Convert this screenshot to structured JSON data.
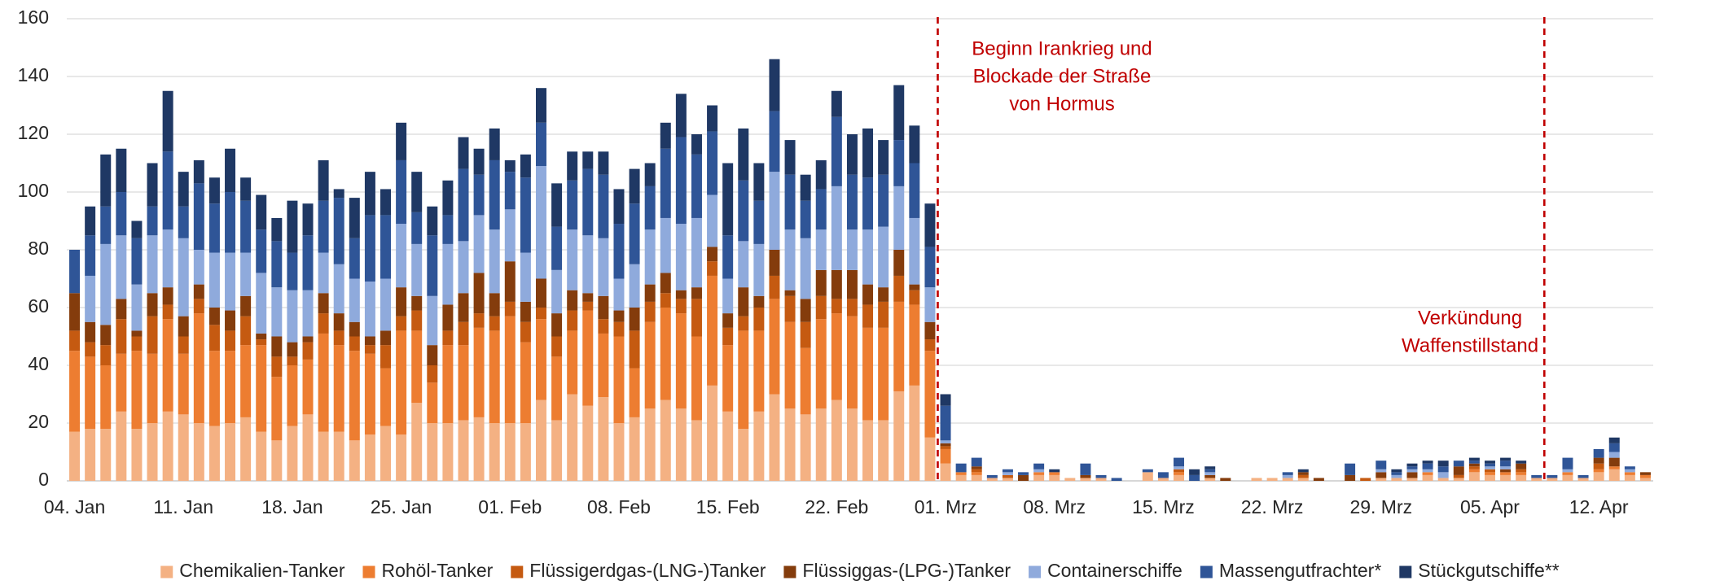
{
  "chart_data": {
    "type": "stacked_bar",
    "categories": [
      "04. Jan",
      null,
      null,
      null,
      null,
      null,
      null,
      "11. Jan",
      null,
      null,
      null,
      null,
      null,
      null,
      "18. Jan",
      null,
      null,
      null,
      null,
      null,
      null,
      "25. Jan",
      null,
      null,
      null,
      null,
      null,
      null,
      "01. Feb",
      null,
      null,
      null,
      null,
      null,
      null,
      "08. Feb",
      null,
      null,
      null,
      null,
      null,
      null,
      "15. Feb",
      null,
      null,
      null,
      null,
      null,
      null,
      "22. Feb",
      null,
      null,
      null,
      null,
      null,
      null,
      "01. Mrz",
      null,
      null,
      null,
      null,
      null,
      null,
      "08. Mrz",
      null,
      null,
      null,
      null,
      null,
      null,
      "15. Mrz",
      null,
      null,
      null,
      null,
      null,
      null,
      "22. Mrz",
      null,
      null,
      null,
      null,
      null,
      null,
      "29. Mrz",
      null,
      null,
      null,
      null,
      null,
      null,
      "05. Apr",
      null,
      null,
      null,
      null,
      null,
      null,
      "12. Apr",
      null,
      null,
      null
    ],
    "series": [
      {
        "name": "Chemikalien-Tanker",
        "color": "#f4b183",
        "values": [
          17,
          18,
          18,
          24,
          18,
          20,
          24,
          23,
          20,
          19,
          20,
          22,
          17,
          14,
          19,
          23,
          17,
          17,
          14,
          16,
          19,
          16,
          27,
          20,
          20,
          21,
          22,
          20,
          20,
          20,
          28,
          21,
          30,
          26,
          29,
          20,
          22,
          25,
          28,
          25,
          21,
          33,
          24,
          18,
          24,
          30,
          25,
          23,
          25,
          28,
          25,
          21,
          21,
          31,
          33,
          15,
          6,
          2,
          2,
          1,
          1,
          0,
          2,
          2,
          1,
          1,
          1,
          0,
          0,
          3,
          1,
          2,
          0,
          1,
          0,
          0,
          1,
          1,
          1,
          1,
          0,
          0,
          0,
          0,
          1,
          1,
          1,
          2,
          1,
          1,
          3,
          2,
          2,
          2,
          1,
          1,
          2,
          1,
          3,
          4,
          2,
          1
        ]
      },
      {
        "name": "Rohöl-Tanker",
        "color": "#ed7d31",
        "values": [
          28,
          25,
          22,
          20,
          27,
          24,
          32,
          21,
          38,
          26,
          25,
          25,
          30,
          22,
          21,
          19,
          34,
          30,
          31,
          28,
          20,
          36,
          25,
          14,
          27,
          26,
          31,
          32,
          37,
          28,
          28,
          22,
          22,
          33,
          22,
          30,
          17,
          30,
          32,
          33,
          29,
          38,
          23,
          34,
          28,
          33,
          30,
          23,
          31,
          30,
          32,
          32,
          32,
          31,
          28,
          30,
          5,
          1,
          1,
          0,
          0,
          0,
          1,
          1,
          0,
          0,
          0,
          0,
          0,
          0,
          0,
          1,
          0,
          0,
          0,
          0,
          0,
          0,
          0,
          0,
          0,
          0,
          0,
          0,
          0,
          0,
          0,
          1,
          0,
          0,
          1,
          1,
          1,
          1,
          0,
          0,
          1,
          0,
          1,
          1,
          1,
          1
        ]
      },
      {
        "name": "Flüssigerdgas-(LNG-)Tanker",
        "color": "#c55a11",
        "values": [
          7,
          5,
          7,
          12,
          5,
          13,
          5,
          6,
          5,
          9,
          7,
          10,
          2,
          7,
          3,
          6,
          7,
          5,
          5,
          3,
          8,
          5,
          7,
          6,
          5,
          8,
          5,
          5,
          5,
          7,
          4,
          7,
          7,
          3,
          5,
          5,
          13,
          7,
          5,
          5,
          13,
          5,
          6,
          5,
          8,
          8,
          9,
          9,
          8,
          5,
          6,
          8,
          9,
          9,
          5,
          4,
          1,
          0,
          1,
          0,
          1,
          0,
          0,
          0,
          0,
          0,
          0,
          0,
          0,
          0,
          0,
          1,
          0,
          0,
          0,
          0,
          0,
          0,
          0,
          1,
          0,
          0,
          0,
          1,
          0,
          0,
          0,
          0,
          0,
          1,
          1,
          1,
          0,
          1,
          0,
          0,
          0,
          0,
          2,
          0,
          0,
          0
        ]
      },
      {
        "name": "Flüssiggas-(LPG-)Tanker",
        "color": "#843c0c",
        "values": [
          13,
          7,
          7,
          7,
          2,
          8,
          6,
          7,
          5,
          6,
          7,
          7,
          2,
          7,
          5,
          2,
          7,
          6,
          5,
          3,
          5,
          10,
          5,
          7,
          9,
          10,
          14,
          8,
          14,
          7,
          10,
          8,
          7,
          3,
          8,
          4,
          8,
          6,
          7,
          3,
          4,
          5,
          5,
          10,
          4,
          9,
          2,
          8,
          9,
          10,
          10,
          7,
          5,
          9,
          2,
          6,
          1,
          0,
          1,
          0,
          0,
          2,
          0,
          0,
          0,
          1,
          0,
          0,
          0,
          0,
          0,
          0,
          0,
          1,
          1,
          0,
          0,
          0,
          0,
          1,
          1,
          0,
          2,
          0,
          2,
          0,
          2,
          0,
          0,
          3,
          1,
          0,
          1,
          2,
          0,
          0,
          0,
          0,
          2,
          3,
          0,
          1
        ]
      },
      {
        "name": "Containerschiffe",
        "color": "#8faadc",
        "values": [
          0,
          16,
          28,
          22,
          16,
          20,
          20,
          27,
          12,
          19,
          20,
          15,
          21,
          17,
          18,
          16,
          14,
          17,
          15,
          19,
          18,
          22,
          18,
          17,
          21,
          18,
          20,
          22,
          18,
          17,
          39,
          15,
          21,
          20,
          20,
          11,
          15,
          19,
          19,
          23,
          24,
          18,
          12,
          16,
          18,
          27,
          21,
          21,
          14,
          29,
          14,
          19,
          21,
          22,
          23,
          12,
          1,
          0,
          0,
          0,
          1,
          0,
          1,
          0,
          0,
          0,
          0,
          0,
          0,
          0,
          0,
          1,
          0,
          1,
          0,
          0,
          0,
          0,
          1,
          0,
          0,
          0,
          0,
          0,
          1,
          1,
          1,
          1,
          2,
          0,
          0,
          1,
          1,
          0,
          0,
          0,
          1,
          0,
          0,
          2,
          1,
          0
        ]
      },
      {
        "name": "Massengutfrachter*",
        "color": "#2f5597",
        "values": [
          15,
          14,
          13,
          15,
          16,
          10,
          27,
          11,
          23,
          17,
          21,
          18,
          15,
          16,
          13,
          19,
          18,
          23,
          14,
          23,
          22,
          22,
          11,
          21,
          10,
          25,
          14,
          24,
          13,
          26,
          15,
          15,
          17,
          23,
          22,
          19,
          21,
          15,
          24,
          30,
          22,
          22,
          15,
          21,
          15,
          21,
          19,
          13,
          14,
          24,
          19,
          18,
          18,
          16,
          19,
          14,
          12,
          3,
          3,
          1,
          1,
          1,
          2,
          0,
          0,
          4,
          1,
          1,
          0,
          1,
          2,
          3,
          2,
          1,
          0,
          0,
          0,
          0,
          1,
          0,
          0,
          0,
          4,
          0,
          3,
          1,
          1,
          2,
          2,
          2,
          1,
          1,
          2,
          0,
          1,
          1,
          4,
          1,
          3,
          3,
          1,
          0
        ]
      },
      {
        "name": "Stückgutschiffe**",
        "color": "#1f3864",
        "values": [
          0,
          10,
          18,
          15,
          6,
          15,
          21,
          12,
          8,
          9,
          15,
          8,
          12,
          8,
          18,
          11,
          14,
          3,
          14,
          15,
          9,
          13,
          14,
          10,
          12,
          11,
          9,
          11,
          4,
          8,
          12,
          15,
          10,
          6,
          8,
          12,
          12,
          8,
          9,
          15,
          7,
          9,
          25,
          18,
          13,
          18,
          12,
          9,
          10,
          9,
          14,
          17,
          12,
          19,
          13,
          15,
          4,
          0,
          0,
          0,
          0,
          0,
          0,
          1,
          0,
          0,
          0,
          0,
          0,
          0,
          0,
          0,
          2,
          1,
          0,
          0,
          0,
          0,
          0,
          1,
          0,
          0,
          0,
          0,
          0,
          1,
          1,
          1,
          2,
          0,
          1,
          1,
          1,
          1,
          0,
          0,
          0,
          0,
          0,
          2,
          0,
          0
        ]
      }
    ],
    "ylim": [
      0,
      160
    ],
    "yticks": [
      0,
      20,
      40,
      60,
      80,
      100,
      120,
      140,
      160
    ],
    "grid": true,
    "legend": "bottom",
    "annotations": [
      {
        "lines": [
          "Beginn Irankrieg und",
          "Blockade der Straße",
          "von Hormus"
        ],
        "color": "#c00000"
      },
      {
        "lines": [
          "Verkündung",
          "Waffenstillstand"
        ],
        "color": "#c00000"
      }
    ]
  }
}
